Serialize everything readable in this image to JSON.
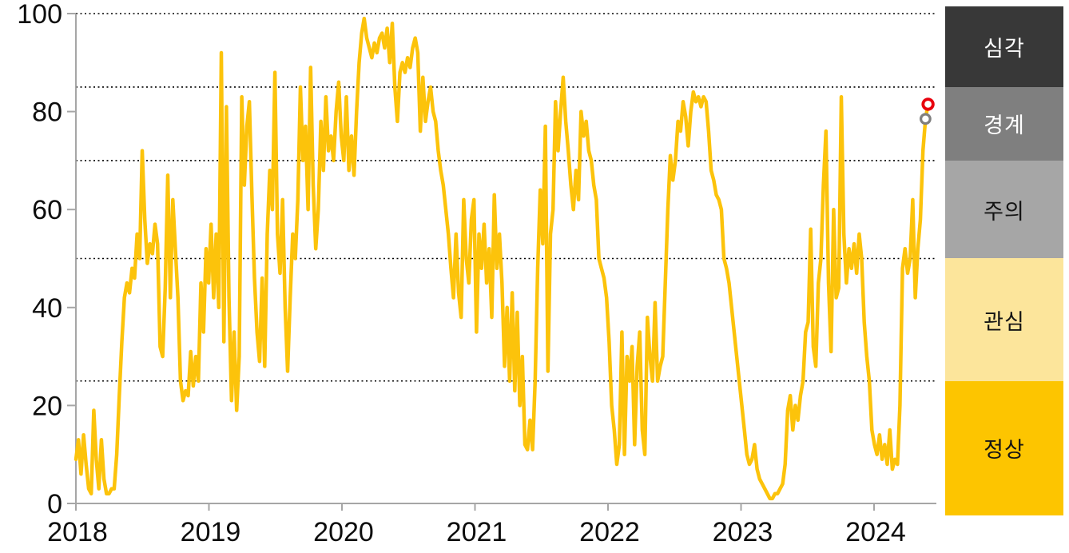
{
  "page": {
    "background": "#FFFFFF"
  },
  "chart_data": {
    "type": "line",
    "title": "",
    "xlabel": "",
    "ylabel": "",
    "ylim": [
      0,
      100
    ],
    "y_ticks": [
      0,
      20,
      40,
      60,
      80,
      100
    ],
    "y_tick_labels": [
      "0",
      "20",
      "40",
      "60",
      "80",
      "100"
    ],
    "x_ticks": [
      2018,
      2019,
      2020,
      2021,
      2022,
      2023,
      2024
    ],
    "x_tick_labels": [
      "2018",
      "2019",
      "2020",
      "2021",
      "2022",
      "2023",
      "2024"
    ],
    "gridlines_dotted_at": [
      100,
      85,
      70,
      50,
      25
    ],
    "legend_position": "right",
    "axis_color": "#A6A6A6",
    "grid_color": "#000000",
    "tick_label_color": "#0D0D0D",
    "series": [
      {
        "name": "weekly-index",
        "color": "#FCC30B",
        "x_start_year": 2018.0,
        "points_per_year": 52.14,
        "values": [
          9,
          13,
          6,
          14,
          8,
          3,
          2,
          19,
          9,
          3,
          13,
          5,
          2,
          2,
          3,
          3,
          10,
          22,
          33,
          42,
          45,
          43,
          48,
          46,
          55,
          50,
          72,
          58,
          49,
          53,
          51,
          57,
          53,
          32,
          30,
          44,
          67,
          42,
          62,
          52,
          42,
          25,
          21,
          23,
          22,
          31,
          24,
          30,
          25,
          45,
          35,
          52,
          45,
          57,
          42,
          55,
          40,
          92,
          33,
          81,
          42,
          21,
          35,
          19,
          30,
          83,
          65,
          77,
          82,
          63,
          46,
          35,
          29,
          46,
          28,
          55,
          68,
          60,
          88,
          55,
          47,
          62,
          40,
          27,
          42,
          55,
          50,
          62,
          85,
          70,
          77,
          60,
          89,
          65,
          52,
          60,
          78,
          68,
          83,
          72,
          75,
          70,
          80,
          86,
          75,
          70,
          83,
          68,
          75,
          67,
          80,
          90,
          96,
          99,
          95,
          93,
          91,
          94,
          92,
          95,
          96,
          93,
          97,
          90,
          98,
          85,
          78,
          88,
          90,
          88,
          91,
          89,
          93,
          95,
          92,
          76,
          87,
          78,
          82,
          85,
          80,
          78,
          72,
          68,
          65,
          60,
          55,
          48,
          42,
          55,
          43,
          38,
          62,
          50,
          45,
          58,
          62,
          35,
          55,
          48,
          57,
          45,
          52,
          38,
          63,
          48,
          55,
          45,
          28,
          40,
          25,
          43,
          23,
          39,
          20,
          30,
          12,
          11,
          17,
          11,
          25,
          48,
          64,
          53,
          77,
          27,
          55,
          60,
          82,
          72,
          80,
          87,
          78,
          72,
          65,
          60,
          68,
          62,
          80,
          75,
          78,
          72,
          70,
          65,
          62,
          50,
          48,
          46,
          42,
          33,
          20,
          15,
          8,
          12,
          35,
          10,
          30,
          25,
          32,
          12,
          28,
          35,
          15,
          10,
          38,
          30,
          25,
          41,
          25,
          28,
          30,
          45,
          60,
          71,
          66,
          70,
          78,
          76,
          82,
          79,
          73,
          80,
          84,
          82,
          83,
          81,
          83,
          82,
          76,
          68,
          66,
          63,
          62,
          60,
          50,
          48,
          45,
          40,
          35,
          30,
          25,
          20,
          15,
          10,
          8,
          9,
          12,
          7,
          5,
          4,
          3,
          2,
          1,
          1,
          2,
          2,
          3,
          4,
          8,
          19,
          22,
          15,
          20,
          17,
          22,
          25,
          35,
          37,
          56,
          32,
          28,
          45,
          50,
          65,
          76,
          45,
          31,
          60,
          42,
          44,
          83,
          55,
          45,
          52,
          48,
          53,
          47,
          55,
          50,
          37,
          30,
          25,
          15,
          12,
          10,
          14,
          9,
          12,
          8,
          15,
          7,
          9,
          8,
          20,
          48,
          52,
          47,
          50,
          62,
          42,
          52,
          58,
          72,
          78.5,
          81.5
        ]
      }
    ],
    "markers": [
      {
        "name": "latest-point",
        "shape": "open-circle",
        "color": "#E8000D",
        "value": 81.5,
        "index_from_end": 0
      },
      {
        "name": "previous-point",
        "shape": "open-circle",
        "color": "#7F7F7F",
        "value": 78.5,
        "index_from_end": 1
      }
    ],
    "risk_bands": [
      {
        "label": "심각",
        "min": 85,
        "max": 100,
        "color": "#383838",
        "text_color": "#FFFFFF"
      },
      {
        "label": "경계",
        "min": 70,
        "max": 85,
        "color": "#7F7F7F",
        "text_color": "#FFFFFF"
      },
      {
        "label": "주의",
        "min": 50,
        "max": 70,
        "color": "#A6A6A6",
        "text_color": "#141414"
      },
      {
        "label": "관심",
        "min": 25,
        "max": 50,
        "color": "#FCE59B",
        "text_color": "#141414"
      },
      {
        "label": "정상",
        "min": 0,
        "max": 25,
        "color": "#FDC500",
        "text_color": "#141414"
      }
    ]
  }
}
